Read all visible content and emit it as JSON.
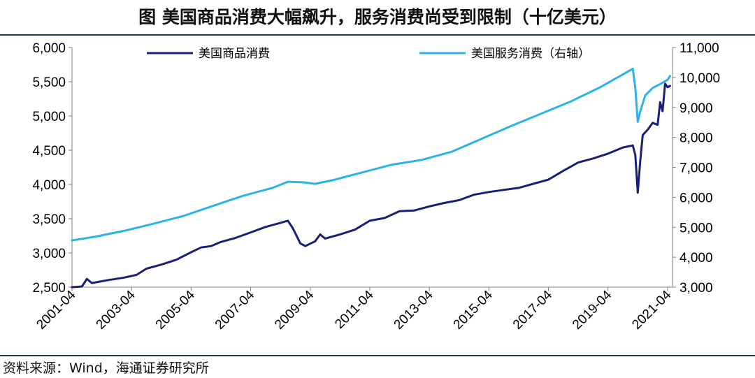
{
  "title": "图  美国商品消费大幅飙升，服务消费尚受到限制（十亿美元）",
  "source": "资料来源：Wind，海通证券研究所",
  "chart_data": {
    "type": "line",
    "title": "图  美国商品消费大幅飙升，服务消费尚受到限制（十亿美元）",
    "x_range": [
      "2001-04",
      "2021-06"
    ],
    "x_ticks": [
      "2001-04",
      "2003-04",
      "2005-04",
      "2007-04",
      "2009-04",
      "2011-04",
      "2013-04",
      "2015-04",
      "2017-04",
      "2019-04",
      "2021-04"
    ],
    "y_left": {
      "range": [
        2500,
        6000
      ],
      "ticks": [
        2500,
        3000,
        3500,
        4000,
        4500,
        5000,
        5500,
        6000
      ],
      "tick_labels": [
        "2,500",
        "3,000",
        "3,500",
        "4,000",
        "4,500",
        "5,000",
        "5,500",
        "6,000"
      ]
    },
    "y_right": {
      "range": [
        3000,
        11000
      ],
      "ticks": [
        3000,
        4000,
        5000,
        6000,
        7000,
        8000,
        9000,
        10000,
        11000
      ],
      "tick_labels": [
        "3,000",
        "4,000",
        "5,000",
        "6,000",
        "7,000",
        "8,000",
        "9,000",
        "10,000",
        "11,000"
      ]
    },
    "grid": false,
    "legend_position": "top",
    "series": [
      {
        "name": "美国商品消费",
        "axis": "left",
        "color": "#1b1f77",
        "points": [
          [
            "2001-04",
            2500
          ],
          [
            "2001-08",
            2510
          ],
          [
            "2001-10",
            2620
          ],
          [
            "2001-12",
            2560
          ],
          [
            "2002-06",
            2600
          ],
          [
            "2003-01",
            2640
          ],
          [
            "2003-06",
            2680
          ],
          [
            "2003-10",
            2770
          ],
          [
            "2004-04",
            2830
          ],
          [
            "2004-10",
            2900
          ],
          [
            "2005-04",
            3010
          ],
          [
            "2005-08",
            3080
          ],
          [
            "2005-12",
            3100
          ],
          [
            "2006-04",
            3160
          ],
          [
            "2006-10",
            3220
          ],
          [
            "2007-04",
            3300
          ],
          [
            "2007-10",
            3380
          ],
          [
            "2008-04",
            3440
          ],
          [
            "2008-07",
            3470
          ],
          [
            "2008-09",
            3360
          ],
          [
            "2008-12",
            3140
          ],
          [
            "2009-02",
            3100
          ],
          [
            "2009-06",
            3170
          ],
          [
            "2009-08",
            3270
          ],
          [
            "2009-10",
            3210
          ],
          [
            "2010-04",
            3270
          ],
          [
            "2010-10",
            3340
          ],
          [
            "2011-04",
            3470
          ],
          [
            "2011-10",
            3510
          ],
          [
            "2012-04",
            3610
          ],
          [
            "2012-10",
            3620
          ],
          [
            "2013-04",
            3680
          ],
          [
            "2013-10",
            3730
          ],
          [
            "2014-04",
            3770
          ],
          [
            "2014-10",
            3850
          ],
          [
            "2015-04",
            3890
          ],
          [
            "2015-10",
            3920
          ],
          [
            "2016-04",
            3950
          ],
          [
            "2016-10",
            4010
          ],
          [
            "2017-04",
            4070
          ],
          [
            "2017-10",
            4200
          ],
          [
            "2018-04",
            4320
          ],
          [
            "2018-10",
            4380
          ],
          [
            "2019-04",
            4450
          ],
          [
            "2019-10",
            4540
          ],
          [
            "2020-02",
            4570
          ],
          [
            "2020-03",
            4430
          ],
          [
            "2020-04",
            3880
          ],
          [
            "2020-05",
            4350
          ],
          [
            "2020-06",
            4720
          ],
          [
            "2020-08",
            4800
          ],
          [
            "2020-10",
            4900
          ],
          [
            "2020-12",
            4870
          ],
          [
            "2021-01",
            5200
          ],
          [
            "2021-02",
            5070
          ],
          [
            "2021-03",
            5470
          ],
          [
            "2021-04",
            5420
          ],
          [
            "2021-05",
            5440
          ]
        ]
      },
      {
        "name": "美国服务消费（右轴）",
        "axis": "right",
        "color": "#2bb3e6",
        "points": [
          [
            "2001-04",
            4560
          ],
          [
            "2002-01",
            4680
          ],
          [
            "2003-01",
            4880
          ],
          [
            "2004-01",
            5120
          ],
          [
            "2005-01",
            5380
          ],
          [
            "2006-01",
            5720
          ],
          [
            "2007-01",
            6050
          ],
          [
            "2008-01",
            6320
          ],
          [
            "2008-07",
            6520
          ],
          [
            "2009-01",
            6500
          ],
          [
            "2009-06",
            6450
          ],
          [
            "2010-01",
            6570
          ],
          [
            "2011-01",
            6830
          ],
          [
            "2012-01",
            7090
          ],
          [
            "2013-01",
            7250
          ],
          [
            "2014-01",
            7520
          ],
          [
            "2015-01",
            7950
          ],
          [
            "2016-01",
            8380
          ],
          [
            "2017-01",
            8790
          ],
          [
            "2018-01",
            9200
          ],
          [
            "2019-01",
            9680
          ],
          [
            "2020-02",
            10290
          ],
          [
            "2020-03",
            9650
          ],
          [
            "2020-04",
            8520
          ],
          [
            "2020-05",
            8870
          ],
          [
            "2020-07",
            9400
          ],
          [
            "2020-10",
            9650
          ],
          [
            "2021-01",
            9780
          ],
          [
            "2021-04",
            9920
          ],
          [
            "2021-05",
            10050
          ]
        ]
      }
    ]
  }
}
